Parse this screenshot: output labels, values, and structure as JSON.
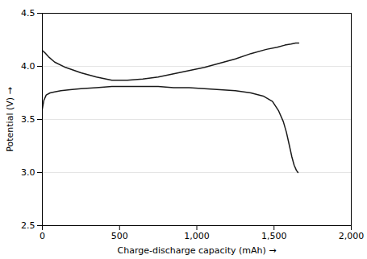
{
  "chart_data": {
    "type": "line",
    "xlabel": "Charge-discharge capacity (mAh)",
    "ylabel": "Potential (V)",
    "xlim": [
      0,
      2000
    ],
    "ylim": [
      2.5,
      4.5
    ],
    "xticks": [
      0,
      500,
      {
        "value": 1000,
        "label": "1,000"
      },
      {
        "value": 1500,
        "label": "1,500"
      },
      {
        "value": 2000,
        "label": "2,000"
      }
    ],
    "yticks": [
      2.5,
      {
        "value": 3.0,
        "label": "3.0"
      },
      3.5,
      {
        "value": 4.0,
        "label": "4.0"
      },
      4.5
    ],
    "grid": "y",
    "series": [
      {
        "color": "#1a1a1a",
        "x": [
          0,
          15,
          40,
          80,
          150,
          250,
          350,
          450,
          550,
          650,
          750,
          850,
          950,
          1050,
          1150,
          1250,
          1350,
          1450,
          1520,
          1570,
          1610,
          1640,
          1660
        ],
        "values": [
          4.15,
          4.13,
          4.09,
          4.04,
          3.99,
          3.94,
          3.9,
          3.87,
          3.87,
          3.88,
          3.9,
          3.93,
          3.96,
          3.99,
          4.03,
          4.07,
          4.12,
          4.16,
          4.18,
          4.2,
          4.21,
          4.22,
          4.22
        ]
      },
      {
        "color": "#1a1a1a",
        "x": [
          0,
          10,
          25,
          50,
          80,
          120,
          180,
          250,
          350,
          450,
          550,
          650,
          750,
          850,
          950,
          1050,
          1150,
          1250,
          1350,
          1430,
          1490,
          1530,
          1560,
          1580,
          1600,
          1615,
          1630,
          1645,
          1655
        ],
        "values": [
          3.6,
          3.68,
          3.73,
          3.75,
          3.76,
          3.77,
          3.78,
          3.79,
          3.8,
          3.81,
          3.81,
          3.81,
          3.81,
          3.8,
          3.8,
          3.79,
          3.78,
          3.77,
          3.75,
          3.72,
          3.67,
          3.58,
          3.48,
          3.38,
          3.25,
          3.15,
          3.07,
          3.02,
          3.0
        ]
      }
    ]
  }
}
